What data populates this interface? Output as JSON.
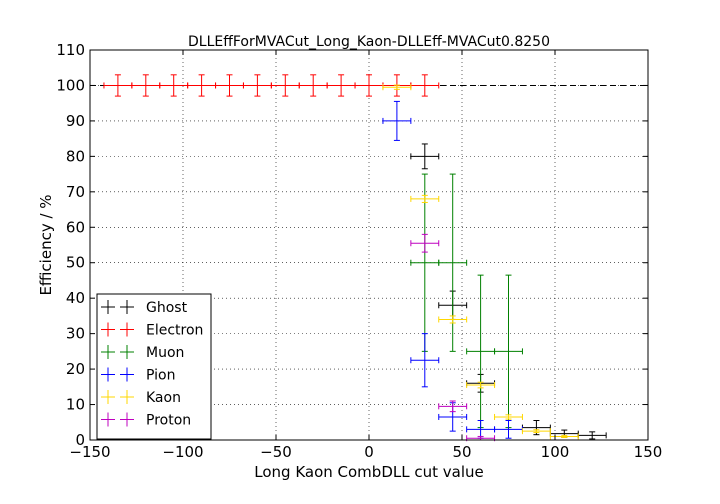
{
  "chart_data": {
    "type": "scatter",
    "title": "DLLEffForMVACut_Long_Kaon-DLLEff-MVACut0.8250",
    "xlabel": "Long Kaon CombDLL cut value",
    "ylabel": "Efficiency / %",
    "xlim": [
      -150,
      150
    ],
    "ylim": [
      0,
      110
    ],
    "xticks": [
      -150,
      -100,
      -50,
      0,
      50,
      100,
      150
    ],
    "yticks": [
      0,
      10,
      20,
      30,
      40,
      50,
      60,
      70,
      80,
      90,
      100,
      110
    ],
    "grid": true,
    "legend_position": "lower-left",
    "reference_line": {
      "y": 100,
      "style": "dashed"
    },
    "series": [
      {
        "name": "Ghost",
        "color": "#000000",
        "points": [
          {
            "x": 30,
            "xerr": 7.5,
            "y": 80,
            "yerr": 3.5
          },
          {
            "x": 45,
            "xerr": 7.5,
            "y": 38,
            "yerr": 4
          },
          {
            "x": 60,
            "xerr": 7.5,
            "y": 16,
            "yerr": 2.5
          },
          {
            "x": 90,
            "xerr": 7.5,
            "y": 3.5,
            "yerr": 2
          },
          {
            "x": 105,
            "xerr": 7.5,
            "y": 1.8,
            "yerr": 1
          },
          {
            "x": 120,
            "xerr": 7.5,
            "y": 1.3,
            "yerr": 1
          }
        ]
      },
      {
        "name": "Electron",
        "color": "#ff0000",
        "points": [
          {
            "x": -135,
            "xerr": 7.5,
            "y": 100,
            "yerr": 3
          },
          {
            "x": -120,
            "xerr": 7.5,
            "y": 100,
            "yerr": 3
          },
          {
            "x": -105,
            "xerr": 7.5,
            "y": 100,
            "yerr": 3
          },
          {
            "x": -90,
            "xerr": 7.5,
            "y": 100,
            "yerr": 3
          },
          {
            "x": -75,
            "xerr": 7.5,
            "y": 100,
            "yerr": 3
          },
          {
            "x": -60,
            "xerr": 7.5,
            "y": 100,
            "yerr": 3
          },
          {
            "x": -45,
            "xerr": 7.5,
            "y": 100,
            "yerr": 3
          },
          {
            "x": -30,
            "xerr": 7.5,
            "y": 100,
            "yerr": 3
          },
          {
            "x": -15,
            "xerr": 7.5,
            "y": 100,
            "yerr": 3
          },
          {
            "x": 0,
            "xerr": 7.5,
            "y": 100,
            "yerr": 3
          },
          {
            "x": 15,
            "xerr": 7.5,
            "y": 100,
            "yerr": 3
          },
          {
            "x": 30,
            "xerr": 7.5,
            "y": 100,
            "yerr": 3
          }
        ]
      },
      {
        "name": "Muon",
        "color": "#008000",
        "points": [
          {
            "x": 30,
            "xerr": 7.5,
            "y": 50,
            "yerr": 25
          },
          {
            "x": 45,
            "xerr": 7.5,
            "y": 50,
            "yerr": 25
          },
          {
            "x": 60,
            "xerr": 7.5,
            "y": 25,
            "yerr": 21.5
          },
          {
            "x": 75,
            "xerr": 7.5,
            "y": 25,
            "yerr": 21.5
          }
        ]
      },
      {
        "name": "Pion",
        "color": "#0000ff",
        "points": [
          {
            "x": 15,
            "xerr": 7.5,
            "y": 90,
            "yerr": 5.5
          },
          {
            "x": 30,
            "xerr": 7.5,
            "y": 22.5,
            "yerr": 7.5
          },
          {
            "x": 45,
            "xerr": 7.5,
            "y": 6.5,
            "yerr": 4
          },
          {
            "x": 60,
            "xerr": 7.5,
            "y": 3,
            "yerr": 2.5
          },
          {
            "x": 75,
            "xerr": 7.5,
            "y": 3,
            "yerr": 2.5
          }
        ]
      },
      {
        "name": "Kaon",
        "color": "#ffd700",
        "points": [
          {
            "x": 15,
            "xerr": 7.5,
            "y": 99.5,
            "yerr": 0.6
          },
          {
            "x": 30,
            "xerr": 7.5,
            "y": 68,
            "yerr": 1
          },
          {
            "x": 45,
            "xerr": 7.5,
            "y": 34,
            "yerr": 1
          },
          {
            "x": 60,
            "xerr": 7.5,
            "y": 15.5,
            "yerr": 0.8
          },
          {
            "x": 75,
            "xerr": 7.5,
            "y": 6.5,
            "yerr": 0.6
          },
          {
            "x": 90,
            "xerr": 7.5,
            "y": 2.5,
            "yerr": 0.4
          },
          {
            "x": 105,
            "xerr": 7.5,
            "y": 1,
            "yerr": 0.3
          }
        ]
      },
      {
        "name": "Proton",
        "color": "#bf00bf",
        "points": [
          {
            "x": 30,
            "xerr": 7.5,
            "y": 55.5,
            "yerr": 2.5
          },
          {
            "x": 45,
            "xerr": 7.5,
            "y": 9.5,
            "yerr": 1.5
          },
          {
            "x": 60,
            "xerr": 7.5,
            "y": 0.5,
            "yerr": 0.5
          }
        ]
      }
    ]
  }
}
